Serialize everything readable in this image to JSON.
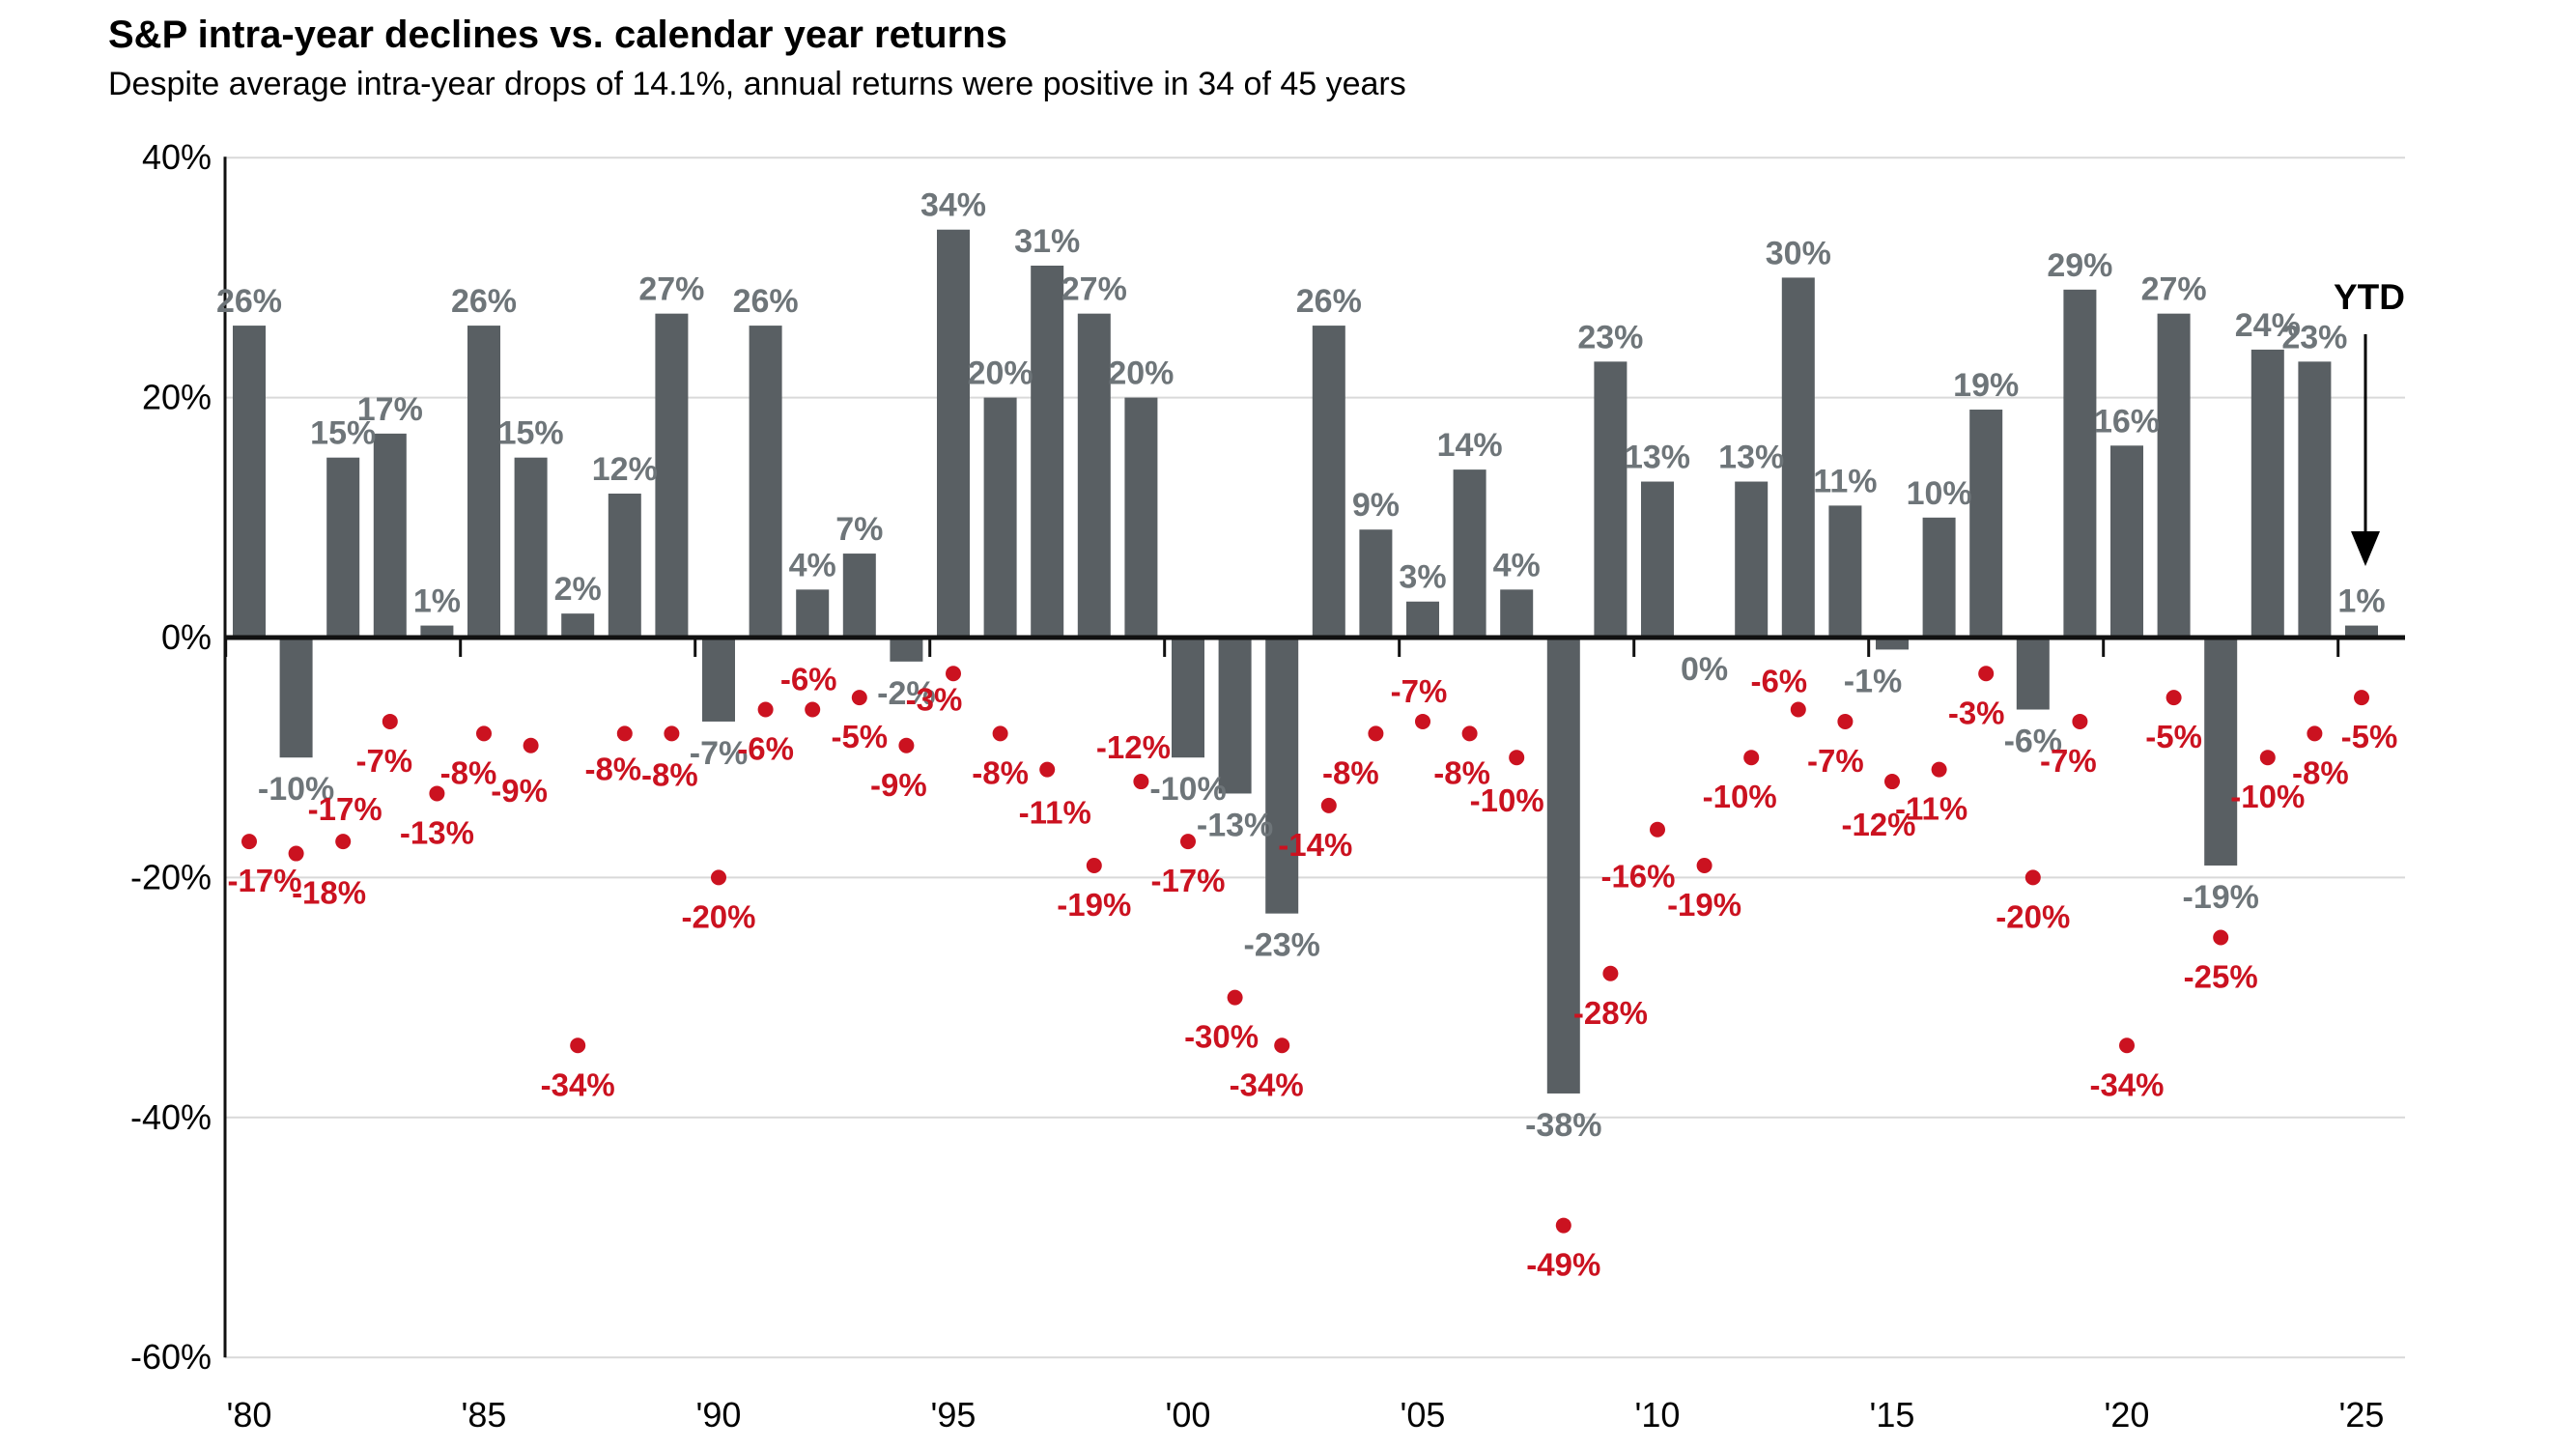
{
  "title": "S&P intra-year declines vs. calendar year returns",
  "subtitle": "Despite average intra-year drops of 14.1%, annual returns were positive in 34 of 45 years",
  "chart_data": {
    "type": "bar",
    "title": "S&P intra-year declines vs. calendar year returns",
    "subtitle": "Despite average intra-year drops of 14.1%, annual returns were positive in 34 of 45 years",
    "xlabel": "",
    "ylabel": "",
    "ylim": [
      -60,
      40
    ],
    "grid": "horizontal",
    "legend_position": "none",
    "years": [
      1980,
      1981,
      1982,
      1983,
      1984,
      1985,
      1986,
      1987,
      1988,
      1989,
      1990,
      1991,
      1992,
      1993,
      1994,
      1995,
      1996,
      1997,
      1998,
      1999,
      2000,
      2001,
      2002,
      2003,
      2004,
      2005,
      2006,
      2007,
      2008,
      2009,
      2010,
      2011,
      2012,
      2013,
      2014,
      2015,
      2016,
      2017,
      2018,
      2019,
      2020,
      2021,
      2022,
      2023,
      2024,
      2025
    ],
    "series": [
      {
        "name": "calendar-year-return",
        "type": "bar",
        "color": "#595f63",
        "label_color": "#6e7579",
        "values": [
          26,
          -10,
          15,
          17,
          1,
          26,
          15,
          2,
          12,
          27,
          -7,
          26,
          4,
          7,
          -2,
          34,
          20,
          31,
          27,
          20,
          -10,
          -13,
          -23,
          26,
          9,
          3,
          14,
          4,
          -38,
          23,
          13,
          0,
          13,
          30,
          11,
          -1,
          10,
          19,
          -6,
          29,
          16,
          27,
          -19,
          24,
          23,
          1
        ]
      },
      {
        "name": "intra-year-decline",
        "type": "scatter",
        "color": "#cb1220",
        "values": [
          -17,
          -18,
          -17,
          -7,
          -13,
          -8,
          -9,
          -34,
          -8,
          -8,
          -20,
          -6,
          -6,
          -5,
          -9,
          -3,
          -8,
          -11,
          -19,
          -12,
          -17,
          -30,
          -34,
          -14,
          -8,
          -7,
          -8,
          -10,
          -49,
          -28,
          -16,
          -19,
          -10,
          -6,
          -7,
          -12,
          -11,
          -3,
          -20,
          -7,
          -34,
          -5,
          -25,
          -10,
          -8,
          -5
        ]
      }
    ],
    "y_ticks": [
      {
        "label": "40%",
        "value": 40
      },
      {
        "label": "20%",
        "value": 20
      },
      {
        "label": "0%",
        "value": 0
      },
      {
        "label": "-20%",
        "value": -20
      },
      {
        "label": "-40%",
        "value": -40
      },
      {
        "label": "-60%",
        "value": -60
      }
    ],
    "x_ticks": [
      {
        "label": "'80",
        "year": 1980
      },
      {
        "label": "'85",
        "year": 1985
      },
      {
        "label": "'90",
        "year": 1990
      },
      {
        "label": "'95",
        "year": 1995
      },
      {
        "label": "'00",
        "year": 2000
      },
      {
        "label": "'05",
        "year": 2005
      },
      {
        "label": "'10",
        "year": 2010
      },
      {
        "label": "'15",
        "year": 2015
      },
      {
        "label": "'20",
        "year": 2020
      },
      {
        "label": "'25",
        "year": 2025
      }
    ],
    "annotations": {
      "ytd_label": "YTD",
      "ytd_year": 2025
    },
    "decline_label_offsets": {
      "1980": [
        16,
        0
      ],
      "1981": [
        34,
        0
      ],
      "1982": [
        2,
        -74
      ],
      "1983": [
        -6,
        0
      ],
      "1985": [
        -16,
        0
      ],
      "1986": [
        -12,
        6
      ],
      "1988": [
        -12,
        -4
      ],
      "1989": [
        -2,
        2
      ],
      "1992": [
        -4,
        -72
      ],
      "1994": [
        -8,
        0
      ],
      "1995": [
        -20,
        -14
      ],
      "1997": [
        8,
        4
      ],
      "1999": [
        -8,
        -76
      ],
      "2001": [
        -14,
        0
      ],
      "2002": [
        -16,
        0
      ],
      "2003": [
        -14,
        0
      ],
      "2004": [
        -26,
        0
      ],
      "2005": [
        -4,
        -72
      ],
      "2006": [
        -8,
        0
      ],
      "2007": [
        -10,
        4
      ],
      "2010": [
        -20,
        8
      ],
      "2012": [
        -12,
        0
      ],
      "2013": [
        -20,
        -70
      ],
      "2014": [
        -10,
        0
      ],
      "2015": [
        -14,
        4
      ],
      "2016": [
        -8,
        0
      ],
      "2017": [
        -10,
        0
      ],
      "2019": [
        -12,
        0
      ],
      "2024": [
        6,
        0
      ],
      "2025": [
        8,
        0
      ]
    },
    "bar_label_offsets": {
      "2015": [
        -20,
        0
      ]
    },
    "colors": {
      "bar": "#595f63",
      "bar_label": "#6e7579",
      "decline_dot": "#cb1220",
      "gridline": "#d9d9d9",
      "axis": "#111111"
    }
  }
}
